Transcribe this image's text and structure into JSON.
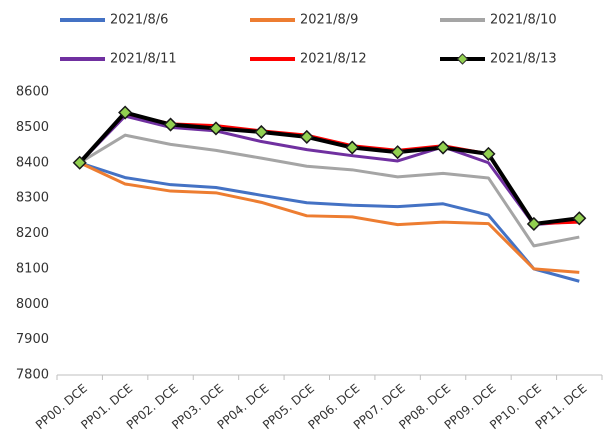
{
  "chart_data": {
    "type": "line",
    "categories": [
      "PP00. DCE",
      "PP01. DCE",
      "PP02. DCE",
      "PP03. DCE",
      "PP04. DCE",
      "PP05. DCE",
      "PP06. DCE",
      "PP07. DCE",
      "PP08. DCE",
      "PP09. DCE",
      "PP10. DCE",
      "PP11. DCE"
    ],
    "series": [
      {
        "name": "2021/8/6",
        "color": "#4472c4",
        "values": [
          8400,
          8358,
          8338,
          8330,
          8308,
          8287,
          8280,
          8276,
          8284,
          8252,
          8100,
          8065
        ]
      },
      {
        "name": "2021/8/9",
        "color": "#ed7d31",
        "values": [
          8400,
          8340,
          8320,
          8315,
          8288,
          8250,
          8247,
          8225,
          8232,
          8228,
          8100,
          8090
        ]
      },
      {
        "name": "2021/8/10",
        "color": "#a5a5a5",
        "values": [
          8400,
          8478,
          8452,
          8435,
          8413,
          8390,
          8380,
          8360,
          8370,
          8357,
          8165,
          8190
        ]
      },
      {
        "name": "2021/8/11",
        "color": "#7030a0",
        "values": [
          8400,
          8532,
          8500,
          8490,
          8460,
          8437,
          8420,
          8405,
          8445,
          8400,
          8225,
          8235
        ]
      },
      {
        "name": "2021/8/12",
        "color": "#ff0000",
        "values": [
          8400,
          8540,
          8510,
          8505,
          8490,
          8478,
          8448,
          8435,
          8448,
          8425,
          8228,
          8232
        ]
      },
      {
        "name": "2021/8/13",
        "color": "#000000",
        "marker_color": "#92d050",
        "values": [
          8400,
          8542,
          8508,
          8497,
          8487,
          8473,
          8443,
          8430,
          8443,
          8425,
          8227,
          8243
        ]
      }
    ],
    "ylim": [
      7800,
      8600
    ],
    "yticks": [
      7800,
      7900,
      8000,
      8100,
      8200,
      8300,
      8400,
      8500,
      8600
    ],
    "grid": false
  }
}
